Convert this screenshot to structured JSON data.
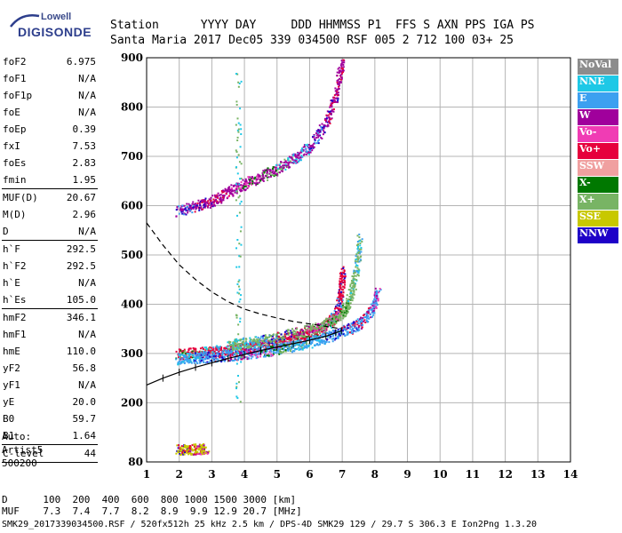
{
  "logo": {
    "line1": "Lowell",
    "line2": "DIGISONDE"
  },
  "header": {
    "labels": {
      "station": "Station",
      "yyyy": "YYYY",
      "day": "DAY",
      "ddd": "DDD",
      "hhmmss": "HHMMSS",
      "p1": "P1",
      "ffs": "FFS",
      "s": "S",
      "axn": "AXN",
      "pps": "PPS",
      "iga": "IGA",
      "ps": "PS"
    },
    "values": {
      "station": "Santa Maria",
      "yyyy": "2017",
      "day": "Dec05",
      "ddd": "339",
      "hhmmss": "034500",
      "p1": "RSF",
      "ffs": "005",
      "s": "2",
      "axn": "712",
      "pps": "100",
      "iga": "03+",
      "ps": "25"
    }
  },
  "params": [
    [
      {
        "key": "foF2",
        "value": "6.975"
      },
      {
        "key": "foF1",
        "value": "N/A"
      },
      {
        "key": "foF1p",
        "value": "N/A"
      },
      {
        "key": "foE",
        "value": "N/A"
      },
      {
        "key": "foEp",
        "value": "0.39"
      },
      {
        "key": "fxI",
        "value": "7.53"
      },
      {
        "key": "foEs",
        "value": "2.83"
      },
      {
        "key": "fmin",
        "value": "1.95"
      }
    ],
    [
      {
        "key": "MUF(D)",
        "value": "20.67"
      },
      {
        "key": "M(D)",
        "value": "2.96"
      },
      {
        "key": "D",
        "value": "N/A"
      }
    ],
    [
      {
        "key": "h`F",
        "value": "292.5"
      },
      {
        "key": "h`F2",
        "value": "292.5"
      },
      {
        "key": "h`E",
        "value": "N/A"
      },
      {
        "key": "h`Es",
        "value": "105.0"
      }
    ],
    [
      {
        "key": "hmF2",
        "value": "346.1"
      },
      {
        "key": "hmF1",
        "value": "N/A"
      },
      {
        "key": "hmE",
        "value": "110.0"
      },
      {
        "key": "yF2",
        "value": "56.8"
      },
      {
        "key": "yF1",
        "value": "N/A"
      },
      {
        "key": "yE",
        "value": "20.0"
      },
      {
        "key": "B0",
        "value": "59.7"
      },
      {
        "key": "B1",
        "value": "1.64"
      }
    ],
    [
      {
        "key": "C-level",
        "value": "44"
      }
    ]
  ],
  "auto": {
    "line1": "Auto:",
    "line2": "Artist5",
    "line3": "500200"
  },
  "legend": [
    {
      "label": "NoVal",
      "color": "#8c8c8c"
    },
    {
      "label": "NNE",
      "color": "#1ec8e6"
    },
    {
      "label": "E",
      "color": "#3ca0f0"
    },
    {
      "label": "W",
      "color": "#a0009c"
    },
    {
      "label": "Vo-",
      "color": "#f03cb4"
    },
    {
      "label": "Vo+",
      "color": "#e6003c"
    },
    {
      "label": "SSW",
      "color": "#f0a0a0"
    },
    {
      "label": "X-",
      "color": "#007800"
    },
    {
      "label": "X+",
      "color": "#78b464"
    },
    {
      "label": "SSE",
      "color": "#c8c800"
    },
    {
      "label": "NNW",
      "color": "#1e00c8"
    }
  ],
  "chart_data": {
    "type": "scatter",
    "xlim": [
      1,
      14
    ],
    "ylim": [
      80,
      900
    ],
    "x_ticks": [
      "1",
      "2",
      "3",
      "4",
      "5",
      "6",
      "7",
      "8",
      "9",
      "10",
      "11",
      "12",
      "13",
      "14"
    ],
    "y_ticks": [
      "80",
      "200",
      "300",
      "400",
      "500",
      "600",
      "700",
      "800",
      "900"
    ],
    "grid": true,
    "legend_placement": "right",
    "traces": [
      {
        "name": "F2 O-trace",
        "color": "#e6003c",
        "points": [
          [
            1.95,
            300
          ],
          [
            2.5,
            302
          ],
          [
            3,
            305
          ],
          [
            3.5,
            308
          ],
          [
            4,
            312
          ],
          [
            4.5,
            317
          ],
          [
            5,
            323
          ],
          [
            5.5,
            330
          ],
          [
            6,
            340
          ],
          [
            6.3,
            350
          ],
          [
            6.6,
            365
          ],
          [
            6.8,
            380
          ],
          [
            6.95,
            420
          ],
          [
            7.0,
            470
          ]
        ]
      },
      {
        "name": "F2 X-trace",
        "color": "#78b464",
        "points": [
          [
            3.5,
            318
          ],
          [
            4,
            322
          ],
          [
            4.5,
            327
          ],
          [
            5,
            333
          ],
          [
            5.5,
            341
          ],
          [
            6,
            350
          ],
          [
            6.5,
            362
          ],
          [
            7,
            380
          ],
          [
            7.2,
            410
          ],
          [
            7.4,
            460
          ],
          [
            7.53,
            540
          ]
        ]
      },
      {
        "name": "E-trace",
        "color": "#3ca0f0",
        "points": [
          [
            1.95,
            290
          ],
          [
            2.5,
            292
          ],
          [
            3,
            295
          ],
          [
            3.5,
            297
          ],
          [
            4,
            300
          ],
          [
            4.5,
            304
          ],
          [
            5,
            310
          ],
          [
            5.5,
            316
          ],
          [
            6,
            324
          ],
          [
            6.5,
            334
          ],
          [
            7,
            345
          ],
          [
            7.5,
            360
          ],
          [
            7.9,
            390
          ],
          [
            8.1,
            430
          ]
        ]
      },
      {
        "name": "F2 multi-hop",
        "color": "#a0009c",
        "points": [
          [
            1.95,
            590
          ],
          [
            2.5,
            600
          ],
          [
            3,
            610
          ],
          [
            3.5,
            628
          ],
          [
            4,
            645
          ],
          [
            4.5,
            660
          ],
          [
            5,
            675
          ],
          [
            5.5,
            695
          ],
          [
            6,
            720
          ],
          [
            6.5,
            770
          ],
          [
            6.8,
            830
          ],
          [
            7.0,
            900
          ]
        ]
      },
      {
        "name": "Es trace",
        "color": "#c8c800",
        "points": [
          [
            1.95,
            105
          ],
          [
            2.3,
            106
          ],
          [
            2.6,
            107
          ],
          [
            2.83,
            108
          ]
        ]
      }
    ],
    "profile_curve": [
      [
        1,
        236
      ],
      [
        1.5,
        250
      ],
      [
        2,
        262
      ],
      [
        2.5,
        272
      ],
      [
        3,
        281
      ],
      [
        3.5,
        290
      ],
      [
        4,
        298
      ],
      [
        4.5,
        306
      ],
      [
        5,
        313
      ],
      [
        5.5,
        320
      ],
      [
        6,
        327
      ],
      [
        6.5,
        335
      ],
      [
        6.8,
        342
      ],
      [
        6.975,
        346.1
      ]
    ],
    "dashed_curve": [
      [
        1,
        565
      ],
      [
        1.5,
        520
      ],
      [
        2,
        480
      ],
      [
        2.5,
        450
      ],
      [
        3,
        425
      ],
      [
        3.5,
        405
      ],
      [
        4,
        390
      ],
      [
        4.5,
        380
      ],
      [
        5,
        372
      ],
      [
        5.5,
        365
      ],
      [
        6,
        360
      ],
      [
        6.5,
        355
      ],
      [
        6.975,
        350
      ]
    ]
  },
  "bottom_table": {
    "d_label": "D",
    "d_values": [
      "100",
      "200",
      "400",
      "600",
      "800",
      "1000",
      "1500",
      "3000"
    ],
    "d_unit": "[km]",
    "muf_label": "MUF",
    "muf_values": [
      "7.3",
      "7.4",
      "7.7",
      "8.2",
      "8.9",
      "9.9",
      "12.9",
      "20.7"
    ],
    "muf_unit": "[MHz]"
  },
  "footer": "SMK29_2017339034500.RSF / 520fx512h 25 kHz 2.5 km / DPS-4D SMK29 129 / 29.7 S 306.3 E Ion2Png 1.3.20"
}
